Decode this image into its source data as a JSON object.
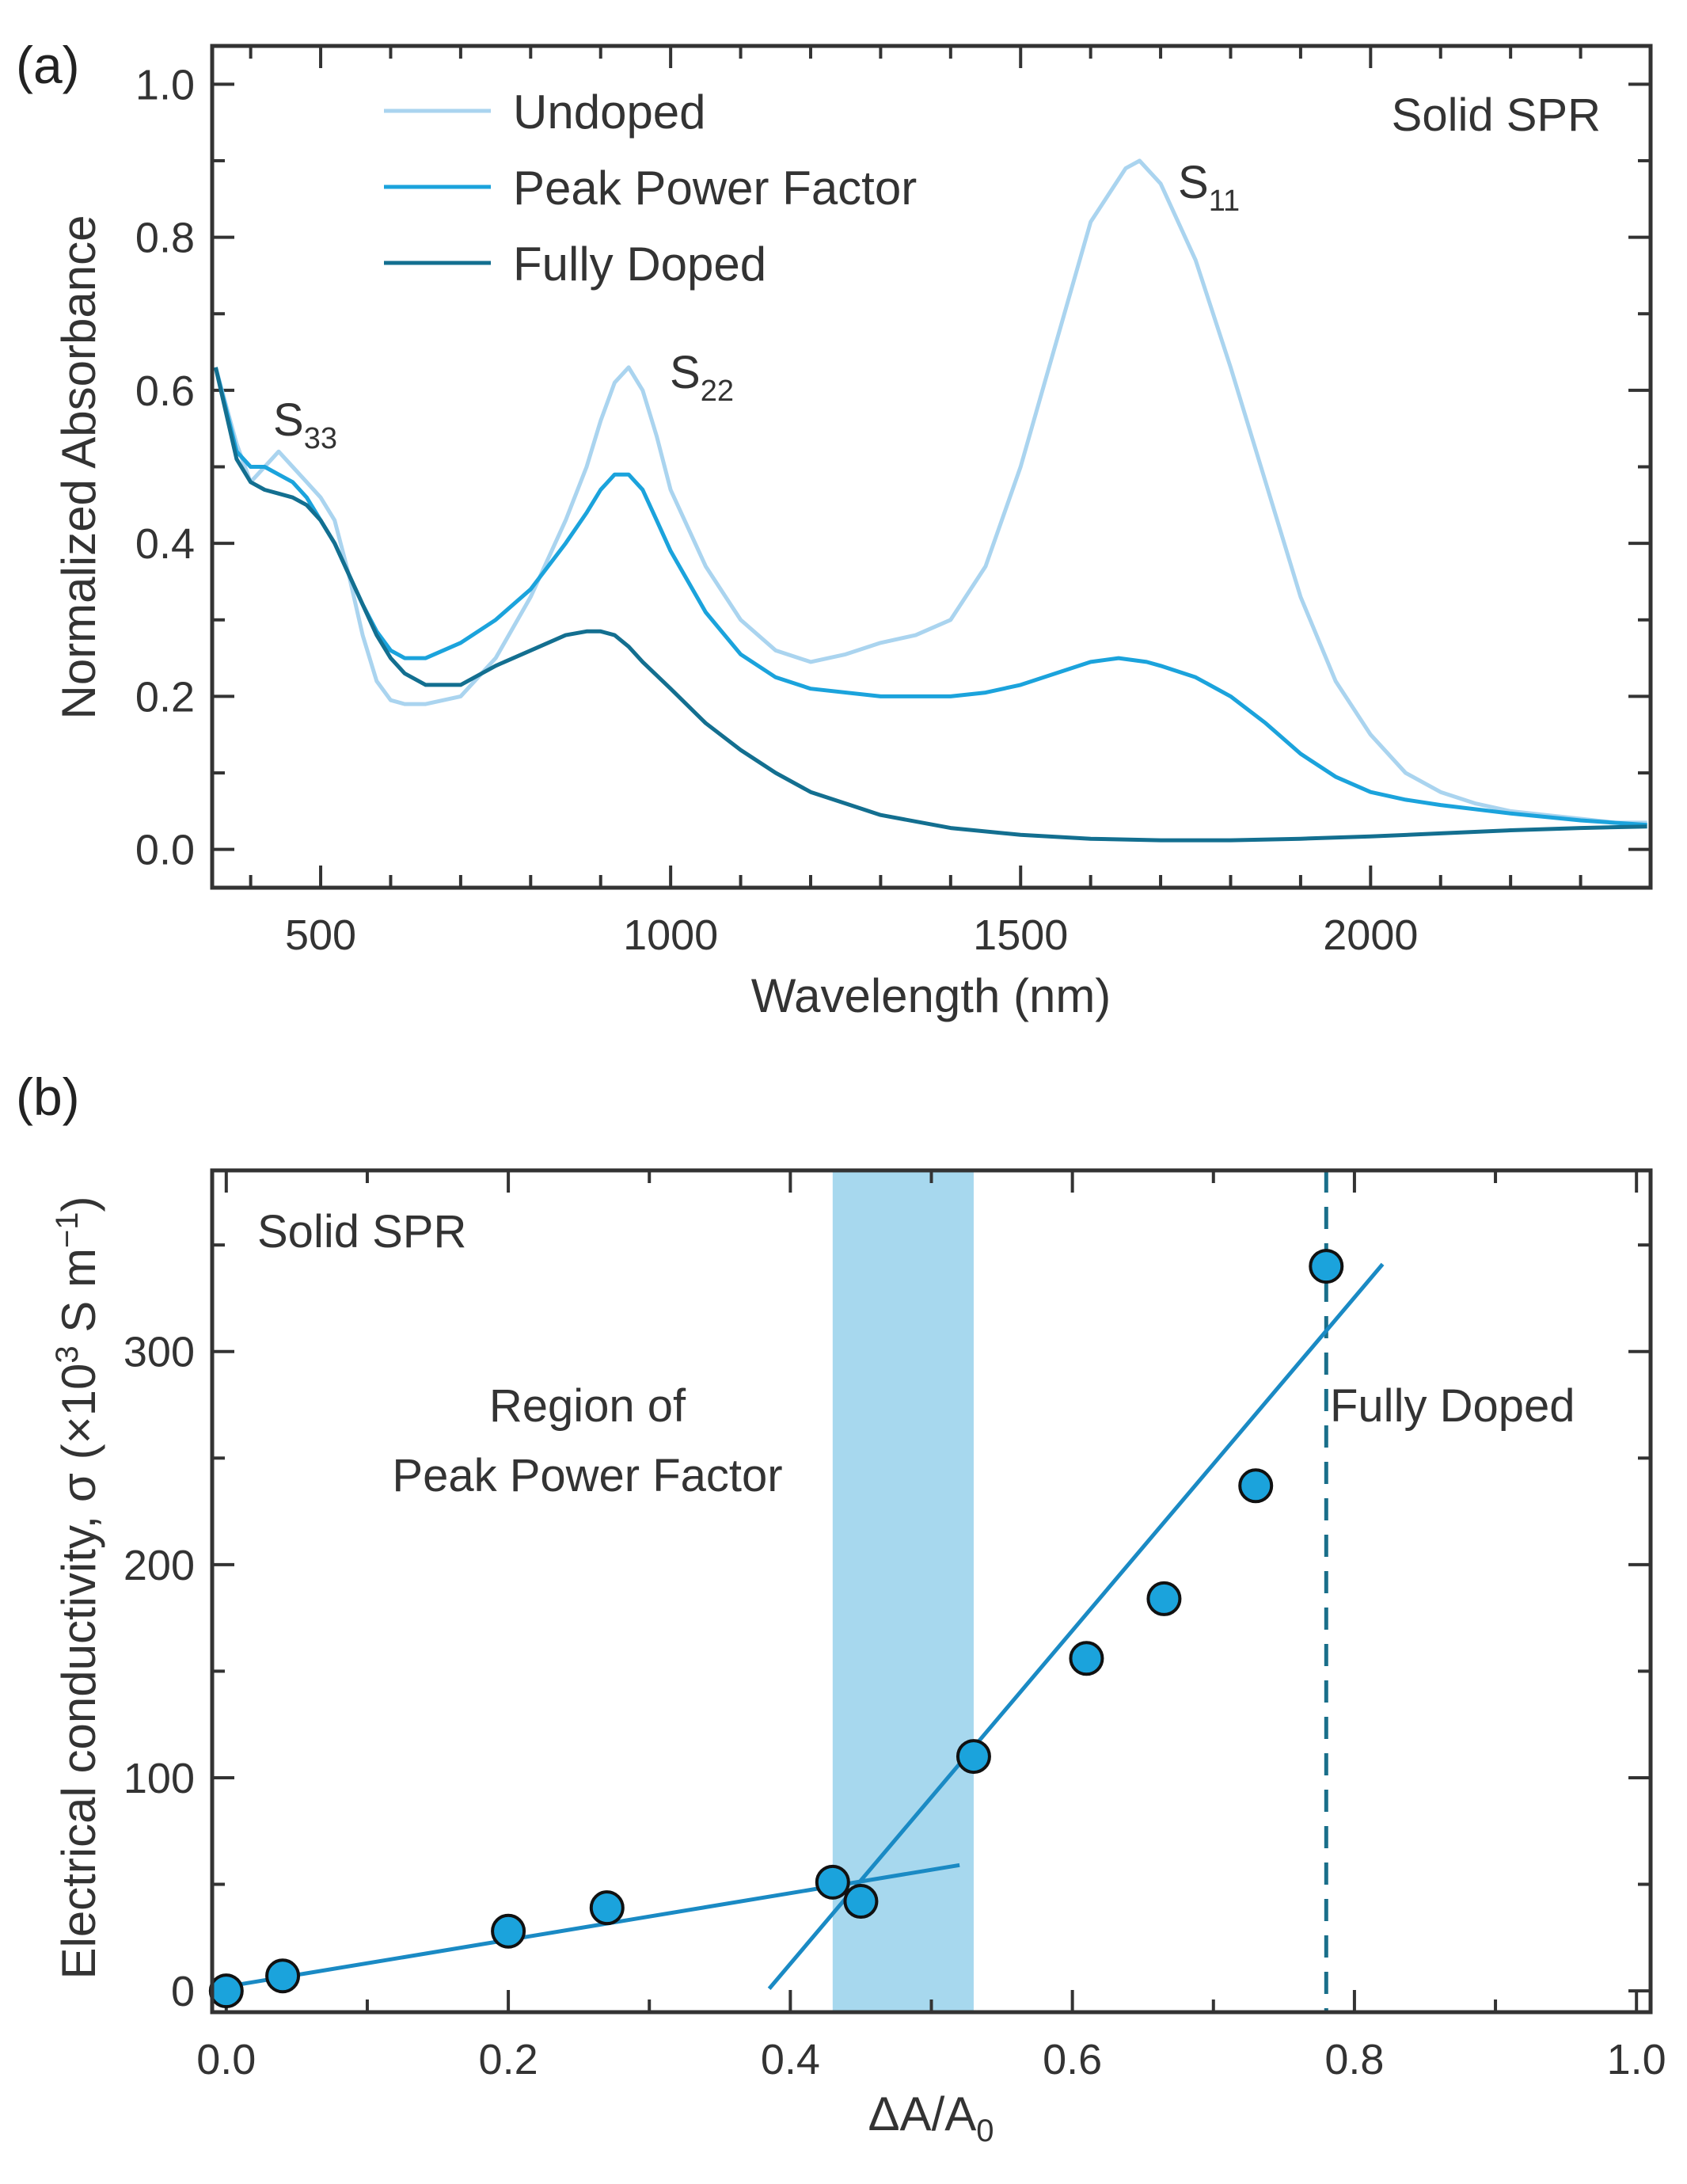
{
  "chart_data": [
    {
      "panel": "(a)",
      "type": "line",
      "title": "",
      "xlabel": "Wavelength (nm)",
      "ylabel": "Normalized Absorbance",
      "xlim": [
        345,
        2400
      ],
      "ylim": [
        -0.05,
        1.05
      ],
      "xticks": [
        500,
        1000,
        1500,
        2000
      ],
      "yticks": [
        0.0,
        0.2,
        0.4,
        0.6,
        0.8,
        1.0
      ],
      "xtick_labels": [
        "500",
        "1000",
        "1500",
        "2000"
      ],
      "ytick_labels": [
        "0.0",
        "0.2",
        "0.4",
        "0.6",
        "0.8",
        "1.0"
      ],
      "legend_position": "top-left",
      "annotation": "Solid SPR",
      "peak_labels": [
        {
          "base": "S",
          "sub": "33",
          "x": 430,
          "y": 0.54
        },
        {
          "base": "S",
          "sub": "22",
          "x": 990,
          "y": 0.64
        },
        {
          "base": "S",
          "sub": "11",
          "x": 1720,
          "y": 0.86
        }
      ],
      "series": [
        {
          "name": "Undoped",
          "color": "#aad4ef",
          "x": [
            350,
            380,
            400,
            420,
            440,
            460,
            480,
            500,
            520,
            540,
            560,
            580,
            600,
            620,
            650,
            700,
            750,
            800,
            850,
            880,
            900,
            920,
            940,
            960,
            980,
            1000,
            1050,
            1100,
            1150,
            1200,
            1250,
            1300,
            1350,
            1400,
            1450,
            1500,
            1550,
            1600,
            1650,
            1670,
            1700,
            1750,
            1800,
            1850,
            1900,
            1950,
            2000,
            2050,
            2100,
            2150,
            2200,
            2250,
            2300,
            2350,
            2395
          ],
          "y": [
            0.63,
            0.53,
            0.48,
            0.5,
            0.52,
            0.5,
            0.48,
            0.46,
            0.43,
            0.36,
            0.28,
            0.22,
            0.195,
            0.19,
            0.19,
            0.2,
            0.25,
            0.33,
            0.43,
            0.5,
            0.56,
            0.61,
            0.63,
            0.6,
            0.54,
            0.47,
            0.37,
            0.3,
            0.26,
            0.245,
            0.255,
            0.27,
            0.28,
            0.3,
            0.37,
            0.5,
            0.66,
            0.82,
            0.89,
            0.9,
            0.87,
            0.77,
            0.63,
            0.48,
            0.33,
            0.22,
            0.15,
            0.1,
            0.075,
            0.06,
            0.05,
            0.045,
            0.04,
            0.035,
            0.035
          ]
        },
        {
          "name": "Peak Power Factor",
          "color": "#1ba3dc",
          "x": [
            350,
            380,
            400,
            420,
            440,
            460,
            480,
            500,
            520,
            540,
            560,
            580,
            600,
            620,
            650,
            700,
            750,
            800,
            850,
            880,
            900,
            920,
            940,
            960,
            980,
            1000,
            1050,
            1100,
            1150,
            1200,
            1300,
            1400,
            1450,
            1500,
            1550,
            1600,
            1640,
            1680,
            1700,
            1750,
            1800,
            1850,
            1900,
            1950,
            2000,
            2050,
            2100,
            2200,
            2300,
            2395
          ],
          "y": [
            0.63,
            0.52,
            0.5,
            0.5,
            0.49,
            0.48,
            0.46,
            0.43,
            0.4,
            0.36,
            0.32,
            0.285,
            0.26,
            0.25,
            0.25,
            0.27,
            0.3,
            0.34,
            0.4,
            0.44,
            0.47,
            0.49,
            0.49,
            0.47,
            0.43,
            0.39,
            0.31,
            0.255,
            0.225,
            0.21,
            0.2,
            0.2,
            0.205,
            0.215,
            0.23,
            0.245,
            0.25,
            0.245,
            0.24,
            0.225,
            0.2,
            0.165,
            0.125,
            0.095,
            0.075,
            0.065,
            0.058,
            0.047,
            0.038,
            0.032
          ]
        },
        {
          "name": "Fully Doped",
          "color": "#136f90",
          "x": [
            350,
            380,
            400,
            420,
            440,
            460,
            480,
            500,
            520,
            540,
            560,
            580,
            600,
            620,
            650,
            700,
            750,
            800,
            850,
            880,
            900,
            920,
            940,
            960,
            1000,
            1050,
            1100,
            1150,
            1200,
            1300,
            1400,
            1500,
            1600,
            1700,
            1800,
            1900,
            2000,
            2100,
            2200,
            2300,
            2395
          ],
          "y": [
            0.63,
            0.51,
            0.48,
            0.47,
            0.465,
            0.46,
            0.45,
            0.43,
            0.4,
            0.36,
            0.32,
            0.28,
            0.25,
            0.23,
            0.215,
            0.215,
            0.24,
            0.26,
            0.28,
            0.285,
            0.285,
            0.28,
            0.265,
            0.245,
            0.21,
            0.165,
            0.13,
            0.1,
            0.075,
            0.045,
            0.028,
            0.019,
            0.014,
            0.012,
            0.012,
            0.014,
            0.017,
            0.021,
            0.025,
            0.028,
            0.03
          ]
        }
      ]
    },
    {
      "panel": "(b)",
      "type": "scatter",
      "title": "",
      "xlabel_base": "ΔA/A",
      "xlabel_sub": "0",
      "ylabel_main": "Electrical conductivity, σ (×10",
      "ylabel_sup1": "3",
      "ylabel_mid": " S m",
      "ylabel_sup2": "−1",
      "ylabel_end": ")",
      "xlim": [
        -0.01,
        1.01
      ],
      "ylim": [
        -10,
        385
      ],
      "xticks": [
        0.0,
        0.2,
        0.4,
        0.6,
        0.8,
        1.0
      ],
      "yticks": [
        0,
        100,
        200,
        300
      ],
      "xtick_labels": [
        "0.0",
        "0.2",
        "0.4",
        "0.6",
        "0.8",
        "1.0"
      ],
      "ytick_labels": [
        "0",
        "100",
        "200",
        "300"
      ],
      "annotation": "Solid SPR",
      "region_label_line1": "Region of",
      "region_label_line2": "Peak Power Factor",
      "fully_doped_label": "Fully Doped",
      "shaded_region": {
        "x0": 0.43,
        "x1": 0.53,
        "color": "#a7d8ee"
      },
      "vline": {
        "x": 0.78,
        "color": "#1a6f8a"
      },
      "points": {
        "color": "#1ba3dc",
        "x": [
          0.0,
          0.04,
          0.2,
          0.27,
          0.43,
          0.45,
          0.53,
          0.61,
          0.665,
          0.73,
          0.78
        ],
        "y": [
          0,
          7,
          28,
          39,
          51,
          42,
          110,
          156,
          184,
          237,
          340
        ]
      },
      "fit_lines": [
        {
          "name": "low",
          "color": "#1a8ac4",
          "x": [
            0.0,
            0.52
          ],
          "y": [
            2,
            59
          ]
        },
        {
          "name": "high",
          "color": "#1a8ac4",
          "x": [
            0.385,
            0.82
          ],
          "y": [
            1,
            341
          ]
        }
      ]
    }
  ]
}
